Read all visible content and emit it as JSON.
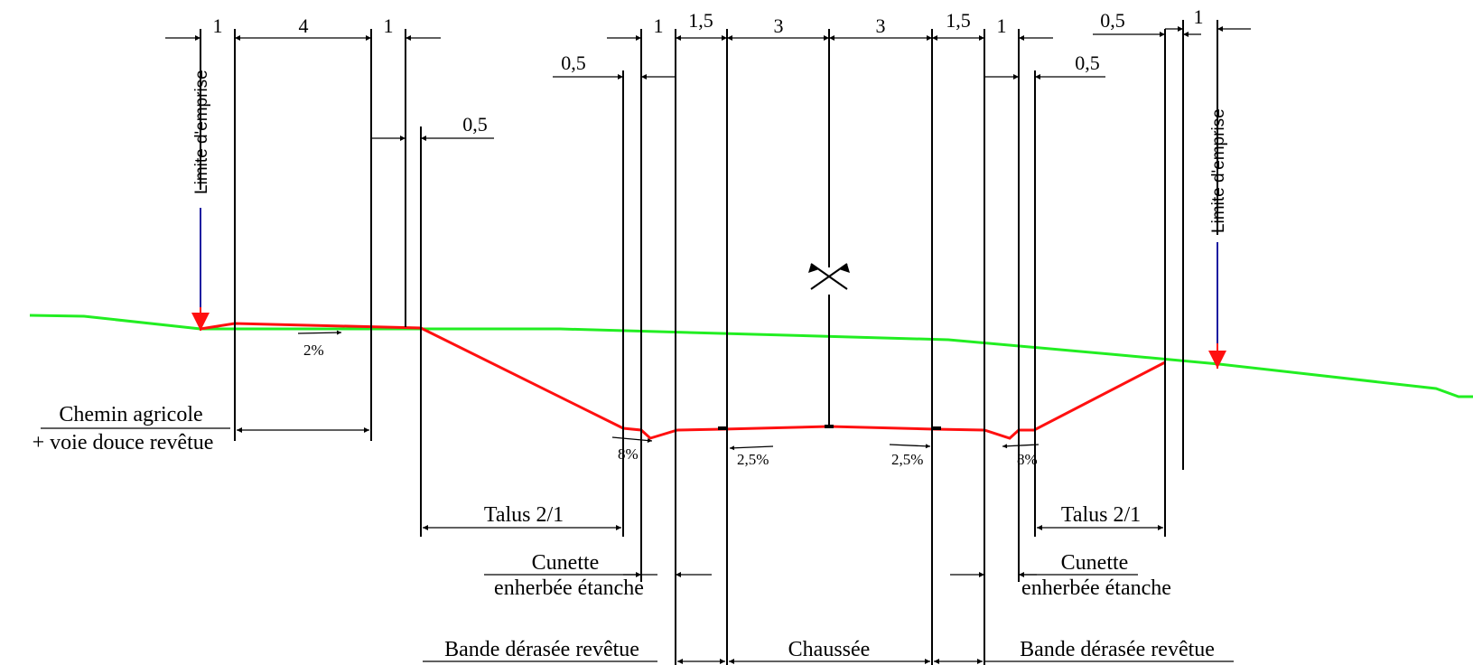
{
  "title": "",
  "colors": {
    "terrain": "#22ee22",
    "profile": "#ff1010",
    "limit_line": "#1a1aa0",
    "limit_arrow": "#ff1010",
    "ink": "#000000"
  },
  "dimensions": {
    "top_left": [
      "1",
      "4",
      "1"
    ],
    "top_mid": [
      "1",
      "1,5",
      "3",
      "3",
      "1,5",
      "1"
    ],
    "top_right_a": "0,5",
    "top_right_b": "1",
    "left_offset": "0,5",
    "left_ditch_offset": "0,5",
    "right_ditch_offset": "0,5"
  },
  "slopes": {
    "path": "2%",
    "ditch_left": "8%",
    "lane_left": "2,5%",
    "lane_right": "2,5%",
    "ditch_right": "8%"
  },
  "labels": {
    "limit_left": "Limite d'emprise",
    "limit_right": "Limite d'emprise",
    "path_line1": "Chemin agricole",
    "path_line2": "+ voie douce revêtue",
    "talus_left": "Talus 2/1",
    "talus_right": "Talus 2/1",
    "cunette_left_1": "Cunette",
    "cunette_left_2": "enherbée étanche",
    "cunette_right_1": "Cunette",
    "cunette_right_2": "enherbée étanche",
    "shoulder_left": "Bande dérasée revêtue",
    "carriageway": "Chaussée",
    "shoulder_right": "Bande dérasée revêtue"
  }
}
